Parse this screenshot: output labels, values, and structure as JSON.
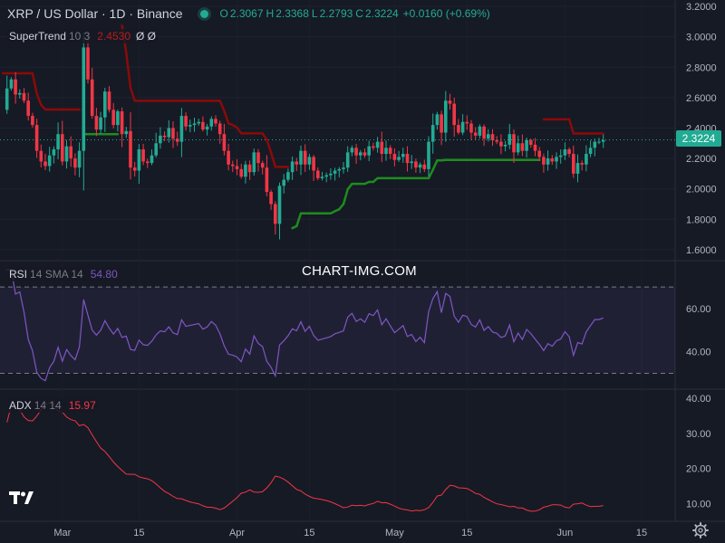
{
  "header": {
    "symbol": "XRP / US Dollar · 1D · Binance",
    "open_label": "O",
    "open": "2.3067",
    "high_label": "H",
    "high": "2.3368",
    "low_label": "L",
    "low": "2.2793",
    "close_label": "C",
    "close": "2.3224",
    "change": "+0.0160 (+0.69%)"
  },
  "supertrend": {
    "name": "SuperTrend",
    "params": "10 3",
    "value": "2.4530",
    "hide_icons": "Ø Ø"
  },
  "rsi": {
    "name": "RSI",
    "params": "14 SMA 14",
    "value": "54.80"
  },
  "adx": {
    "name": "ADX",
    "params": "14 14",
    "value": "15.97"
  },
  "watermark": "CHART-IMG.COM",
  "last_price_tag": "2.3224",
  "colors": {
    "background": "#161a25",
    "up": "#22ab94",
    "down": "#f23645",
    "supertrend_up": "#1e8c1e",
    "supertrend_down": "#8b0a0a",
    "rsi_line": "#7e57c2",
    "adx_line": "#f23645",
    "text": "#d1d4dc",
    "axis_text": "#b2b5be"
  },
  "icons": [
    "tradingview-logo-icon",
    "settings-gear-icon",
    "eye-off-icon"
  ],
  "chart_data": [
    {
      "type": "candlestick",
      "title": "XRP / US Dollar · 1D · Binance",
      "x_ticks": [
        "Mar",
        "15",
        "Apr",
        "15",
        "May",
        "15",
        "Jun",
        "15"
      ],
      "y_ticks": [
        "1.6000",
        "1.8000",
        "2.0000",
        "2.2000",
        "2.4000",
        "2.6000",
        "2.8000",
        "3.0000",
        "3.2000"
      ],
      "ylim": [
        1.54,
        3.23
      ],
      "last_price": 2.3224,
      "close": [
        2.52,
        2.66,
        2.72,
        2.62,
        2.63,
        2.58,
        2.48,
        2.42,
        2.25,
        2.18,
        2.15,
        2.22,
        2.26,
        2.36,
        2.18,
        2.28,
        2.2,
        2.14,
        2.25,
        2.93,
        2.72,
        2.48,
        2.39,
        2.47,
        2.64,
        2.52,
        2.42,
        2.51,
        2.36,
        2.38,
        2.14,
        2.12,
        2.26,
        2.18,
        2.17,
        2.22,
        2.3,
        2.35,
        2.34,
        2.4,
        2.33,
        2.31,
        2.48,
        2.41,
        2.42,
        2.43,
        2.44,
        2.39,
        2.41,
        2.46,
        2.43,
        2.36,
        2.25,
        2.16,
        2.15,
        2.13,
        2.08,
        2.16,
        2.11,
        2.24,
        2.17,
        2.14,
        1.98,
        1.9,
        1.77,
        2.02,
        2.06,
        2.11,
        2.18,
        2.16,
        2.25,
        2.16,
        2.21,
        2.12,
        2.07,
        2.08,
        2.09,
        2.1,
        2.12,
        2.13,
        2.14,
        2.24,
        2.27,
        2.22,
        2.24,
        2.22,
        2.28,
        2.27,
        2.31,
        2.23,
        2.27,
        2.23,
        2.19,
        2.21,
        2.23,
        2.17,
        2.18,
        2.14,
        2.16,
        2.13,
        2.31,
        2.42,
        2.49,
        2.37,
        2.58,
        2.56,
        2.42,
        2.37,
        2.44,
        2.43,
        2.37,
        2.35,
        2.41,
        2.33,
        2.36,
        2.32,
        2.31,
        2.28,
        2.29,
        2.36,
        2.24,
        2.3,
        2.25,
        2.32,
        2.29,
        2.25,
        2.21,
        2.16,
        2.2,
        2.18,
        2.21,
        2.22,
        2.26,
        2.23,
        2.1,
        2.17,
        2.16,
        2.23,
        2.27,
        2.31,
        2.31,
        2.32
      ]
    },
    {
      "type": "line",
      "name": "RSI 14 SMA 14",
      "y_ticks": [
        "40.00",
        "60.00"
      ],
      "ylim": [
        26,
        78
      ],
      "bands": [
        30,
        70
      ],
      "last_value": 54.8
    },
    {
      "type": "line",
      "name": "ADX 14 14",
      "y_ticks": [
        "10.00",
        "20.00",
        "30.00",
        "40.00"
      ],
      "ylim": [
        6,
        40
      ],
      "last_value": 15.97
    }
  ]
}
